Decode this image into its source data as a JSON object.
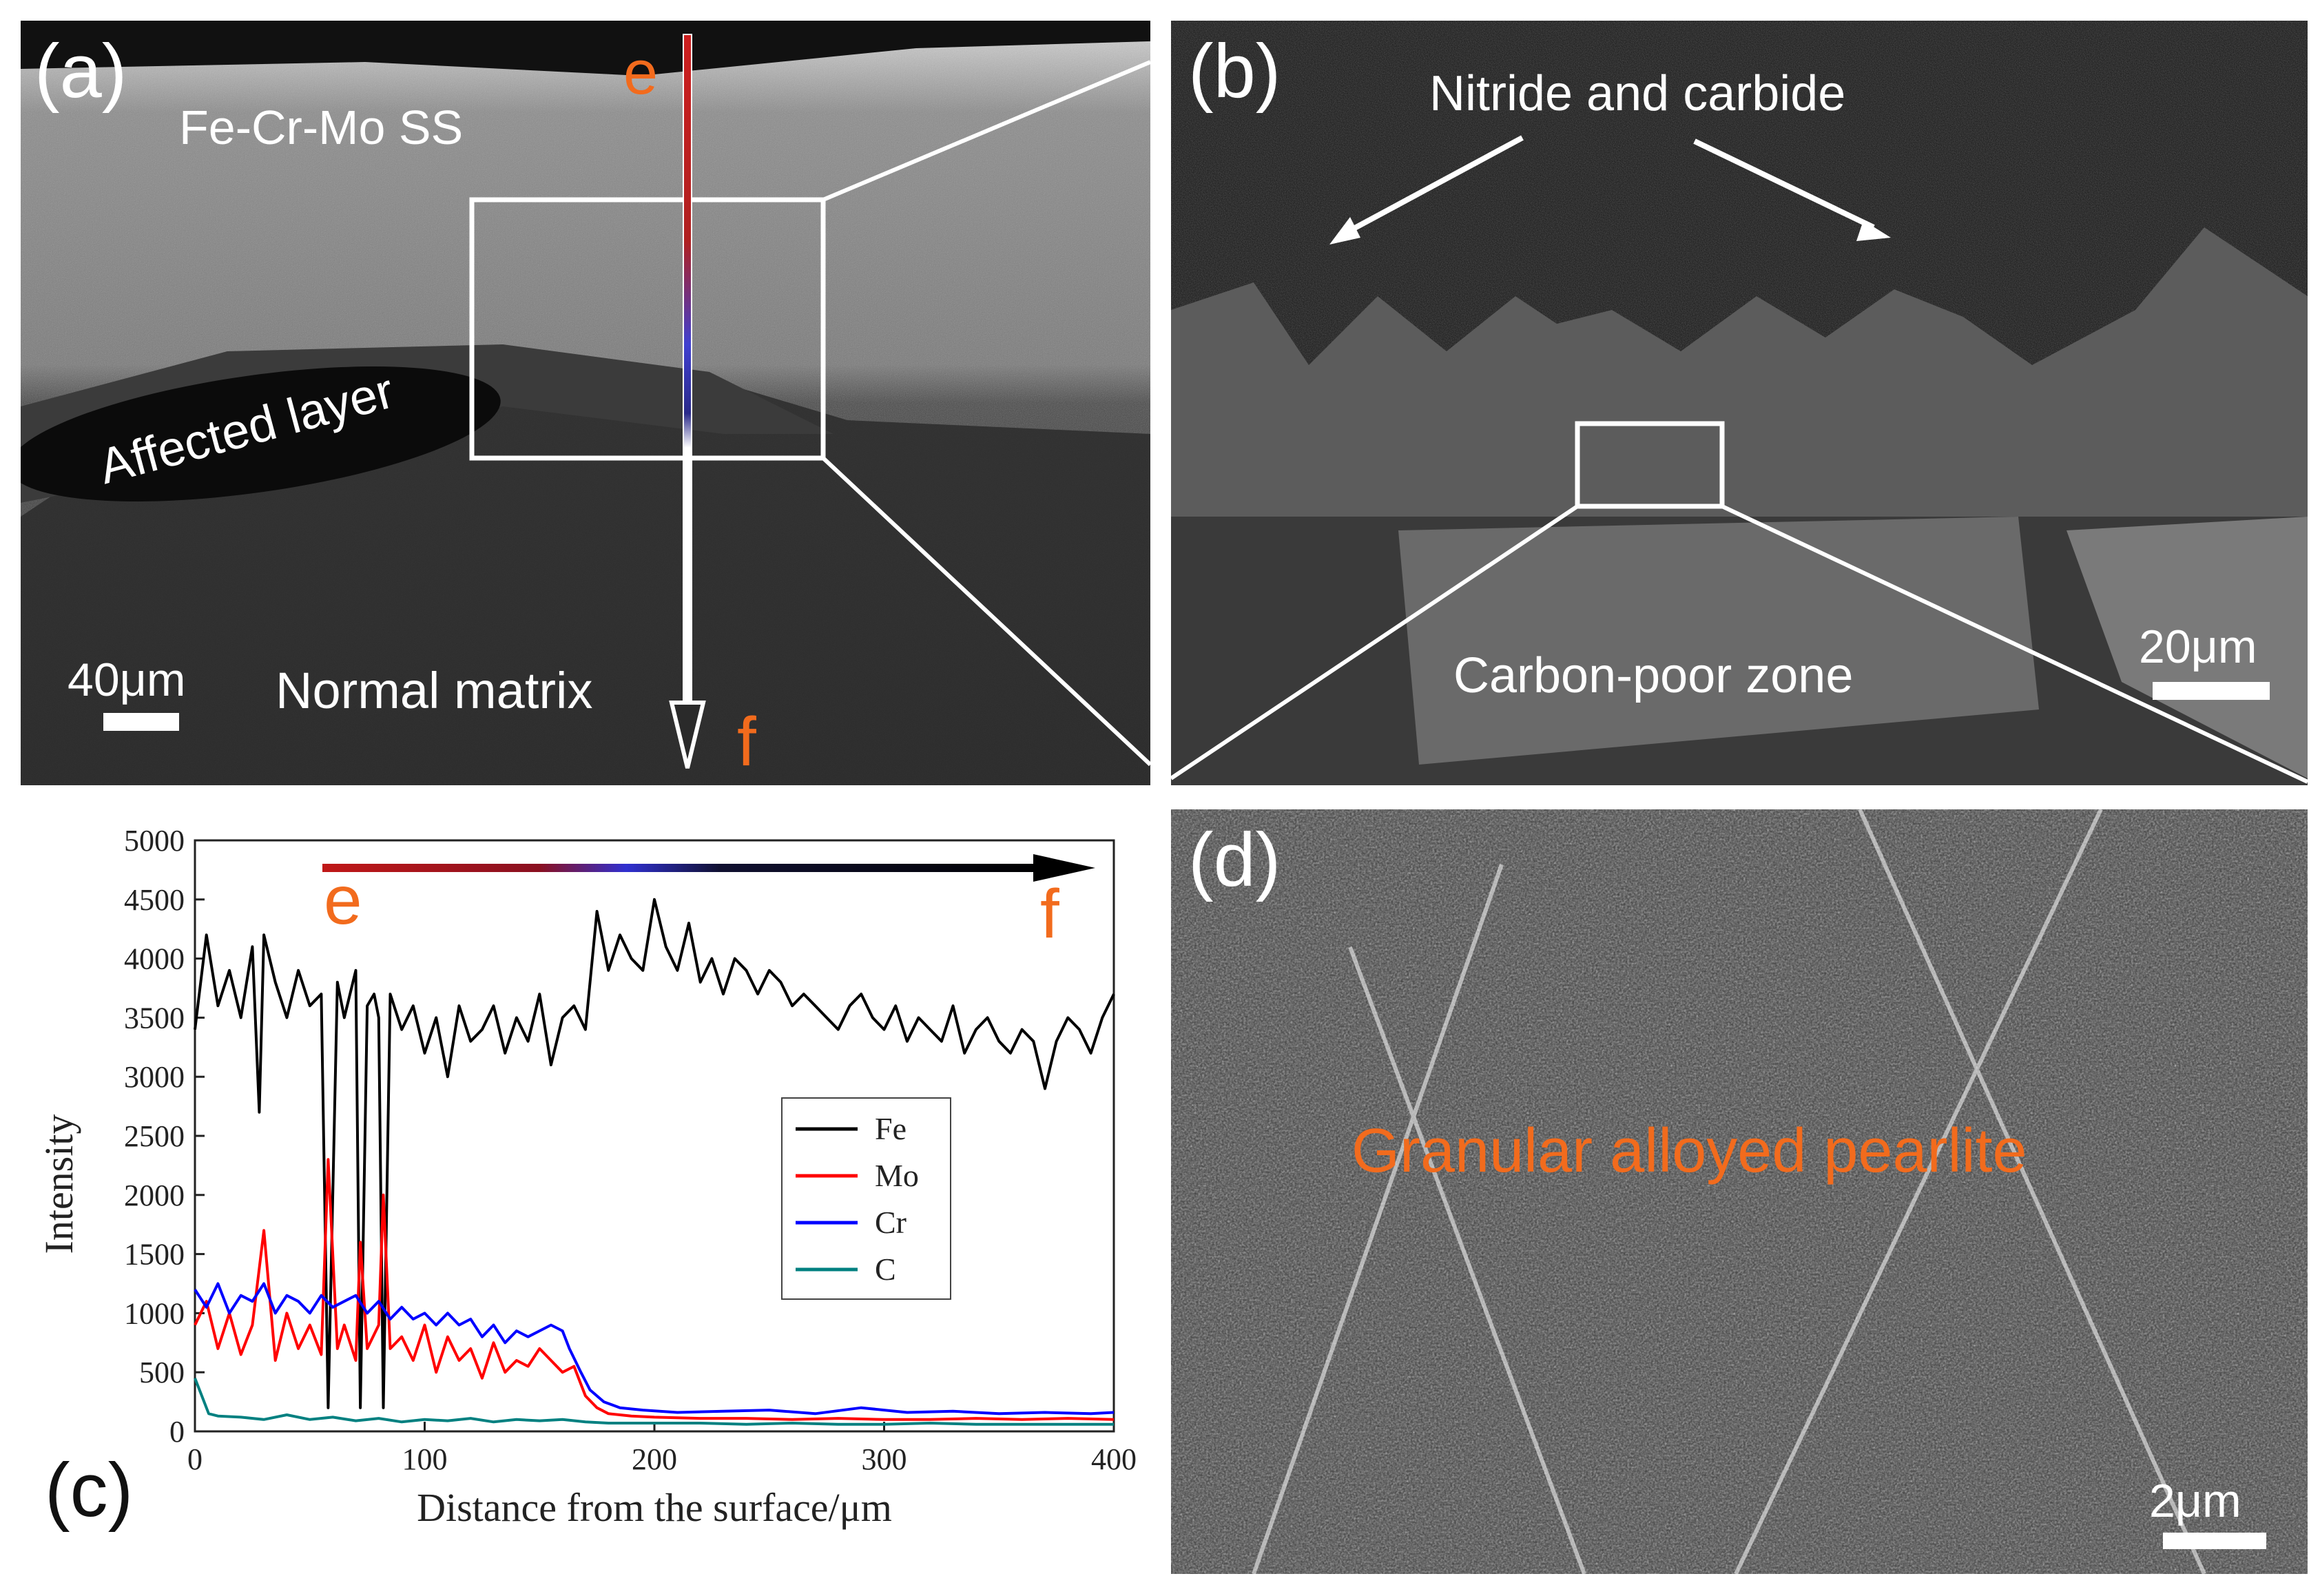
{
  "figure": {
    "panels": {
      "a": {
        "label": "(a)",
        "texts": {
          "material": "Fe-Cr-Mo SS",
          "affected": "Affected layer",
          "normal": "Normal matrix",
          "scale": "40μm",
          "start": "e",
          "end": "f"
        }
      },
      "b": {
        "label": "(b)",
        "texts": {
          "top": "Nitride and carbide",
          "bottom": "Carbon-poor zone",
          "scale": "20μm"
        }
      },
      "c": {
        "label": "(c)",
        "arrow_start": "e",
        "arrow_end": "f"
      },
      "d": {
        "label": "(d)",
        "texts": {
          "main": "Granular alloyed pearlite",
          "scale": "2μm"
        }
      }
    },
    "colors": {
      "annotation_orange": "#f26b1d",
      "Fe": "#000000",
      "Mo": "#ff0000",
      "Cr": "#0000ff",
      "C": "#008080"
    }
  },
  "chart_data": {
    "type": "line",
    "xlabel": "Distance from the surface/μm",
    "ylabel": "Intensity",
    "xlim": [
      0,
      400
    ],
    "ylim": [
      0,
      5000
    ],
    "xticks": [
      0,
      100,
      200,
      300,
      400
    ],
    "yticks": [
      0,
      500,
      1000,
      1500,
      2000,
      2500,
      3000,
      3500,
      4000,
      4500,
      5000
    ],
    "legend_position": "center-right",
    "series": [
      {
        "name": "Fe",
        "color": "#000000",
        "x": [
          0,
          5,
          10,
          15,
          20,
          25,
          28,
          30,
          35,
          40,
          45,
          50,
          55,
          58,
          62,
          65,
          70,
          72,
          75,
          78,
          80,
          82,
          85,
          90,
          95,
          100,
          105,
          110,
          115,
          120,
          125,
          130,
          135,
          140,
          145,
          150,
          155,
          160,
          165,
          170,
          175,
          180,
          185,
          190,
          195,
          200,
          205,
          210,
          215,
          220,
          225,
          230,
          235,
          240,
          245,
          250,
          255,
          260,
          265,
          270,
          275,
          280,
          285,
          290,
          295,
          300,
          305,
          310,
          315,
          320,
          325,
          330,
          335,
          340,
          345,
          350,
          355,
          360,
          365,
          370,
          375,
          380,
          385,
          390,
          395,
          400
        ],
        "values": [
          3400,
          4200,
          3600,
          3900,
          3500,
          4100,
          2700,
          4200,
          3800,
          3500,
          3900,
          3600,
          3700,
          200,
          3800,
          3500,
          3900,
          200,
          3600,
          3700,
          3500,
          200,
          3700,
          3400,
          3600,
          3200,
          3500,
          3000,
          3600,
          3300,
          3400,
          3600,
          3200,
          3500,
          3300,
          3700,
          3100,
          3500,
          3600,
          3400,
          4400,
          3900,
          4200,
          4000,
          3900,
          4500,
          4100,
          3900,
          4300,
          3800,
          4000,
          3700,
          4000,
          3900,
          3700,
          3900,
          3800,
          3600,
          3700,
          3600,
          3500,
          3400,
          3600,
          3700,
          3500,
          3400,
          3600,
          3300,
          3500,
          3400,
          3300,
          3600,
          3200,
          3400,
          3500,
          3300,
          3200,
          3400,
          3300,
          2900,
          3300,
          3500,
          3400,
          3200,
          3500,
          3700
        ]
      },
      {
        "name": "Mo",
        "color": "#ff0000",
        "x": [
          0,
          5,
          10,
          15,
          20,
          25,
          30,
          35,
          40,
          45,
          50,
          55,
          58,
          62,
          65,
          70,
          72,
          75,
          80,
          82,
          85,
          90,
          95,
          100,
          105,
          110,
          115,
          120,
          125,
          130,
          135,
          140,
          145,
          150,
          155,
          160,
          165,
          170,
          175,
          180,
          190,
          200,
          220,
          240,
          260,
          280,
          300,
          320,
          340,
          360,
          380,
          400
        ],
        "values": [
          900,
          1100,
          700,
          1000,
          650,
          900,
          1700,
          600,
          1000,
          700,
          900,
          650,
          2300,
          700,
          900,
          600,
          1600,
          700,
          900,
          2000,
          700,
          800,
          600,
          900,
          500,
          800,
          600,
          700,
          450,
          750,
          500,
          600,
          550,
          700,
          600,
          500,
          550,
          300,
          200,
          150,
          130,
          120,
          110,
          110,
          100,
          110,
          100,
          100,
          110,
          100,
          110,
          100
        ]
      },
      {
        "name": "Cr",
        "color": "#0000ff",
        "x": [
          0,
          5,
          10,
          15,
          20,
          25,
          30,
          35,
          40,
          45,
          50,
          55,
          60,
          65,
          70,
          75,
          80,
          85,
          90,
          95,
          100,
          105,
          110,
          115,
          120,
          125,
          130,
          135,
          140,
          145,
          150,
          155,
          160,
          163,
          168,
          172,
          178,
          185,
          195,
          210,
          230,
          250,
          270,
          290,
          310,
          330,
          350,
          370,
          390,
          400
        ],
        "values": [
          1200,
          1050,
          1250,
          1000,
          1150,
          1100,
          1250,
          1000,
          1150,
          1100,
          1000,
          1150,
          1050,
          1100,
          1150,
          1000,
          1100,
          950,
          1050,
          950,
          1000,
          900,
          1000,
          900,
          950,
          800,
          900,
          750,
          850,
          800,
          850,
          900,
          850,
          700,
          500,
          350,
          250,
          200,
          180,
          160,
          170,
          180,
          150,
          200,
          160,
          170,
          150,
          160,
          150,
          160
        ]
      },
      {
        "name": "C",
        "color": "#008080",
        "x": [
          0,
          3,
          6,
          10,
          20,
          30,
          40,
          50,
          60,
          70,
          80,
          90,
          100,
          110,
          120,
          130,
          140,
          150,
          160,
          170,
          180,
          200,
          220,
          240,
          260,
          280,
          300,
          320,
          340,
          360,
          380,
          400
        ],
        "values": [
          450,
          300,
          150,
          130,
          120,
          100,
          140,
          100,
          120,
          90,
          110,
          80,
          100,
          90,
          110,
          80,
          100,
          90,
          100,
          80,
          70,
          70,
          70,
          60,
          70,
          60,
          60,
          70,
          60,
          60,
          60,
          60
        ]
      }
    ]
  }
}
